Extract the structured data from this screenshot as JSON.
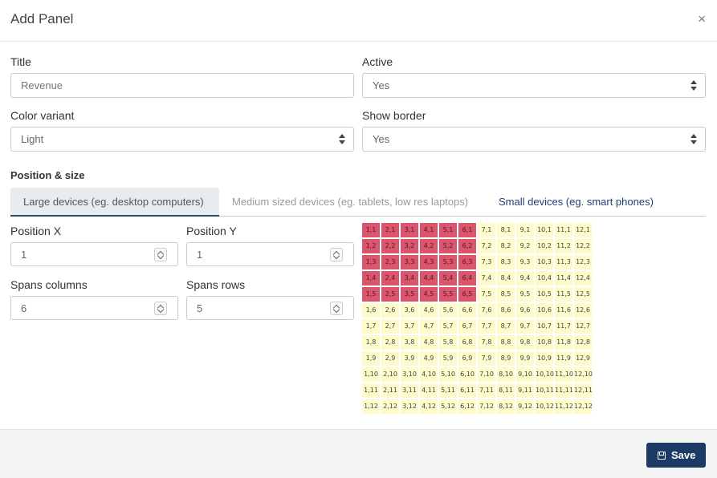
{
  "dialog": {
    "title": "Add Panel",
    "close_glyph": "×"
  },
  "form": {
    "title": {
      "label": "Title",
      "placeholder": "Revenue",
      "value": ""
    },
    "active": {
      "label": "Active",
      "value": "Yes"
    },
    "color_variant": {
      "label": "Color variant",
      "value": "Light"
    },
    "show_border": {
      "label": "Show border",
      "value": "Yes"
    }
  },
  "position_size": {
    "section_title": "Position & size",
    "tabs": [
      {
        "label": "Large devices (eg. desktop computers)",
        "state": "active"
      },
      {
        "label": "Medium sized devices (eg. tablets, low res laptops)",
        "state": "muted"
      },
      {
        "label": "Small devices (eg. smart phones)",
        "state": "link"
      }
    ],
    "position_x": {
      "label": "Position X",
      "value": "1"
    },
    "position_y": {
      "label": "Position Y",
      "value": "1"
    },
    "spans_columns": {
      "label": "Spans columns",
      "value": "6"
    },
    "spans_rows": {
      "label": "Spans rows",
      "value": "5"
    },
    "grid": {
      "columns": 12,
      "rows": 12,
      "selected_col_start": 1,
      "selected_col_end": 6,
      "selected_row_start": 1,
      "selected_row_end": 5
    }
  },
  "footer": {
    "save_label": "Save"
  },
  "colors": {
    "accent": "#1b3a66",
    "selected_cell": "#d9566c",
    "empty_cell": "#fdfbc9"
  }
}
